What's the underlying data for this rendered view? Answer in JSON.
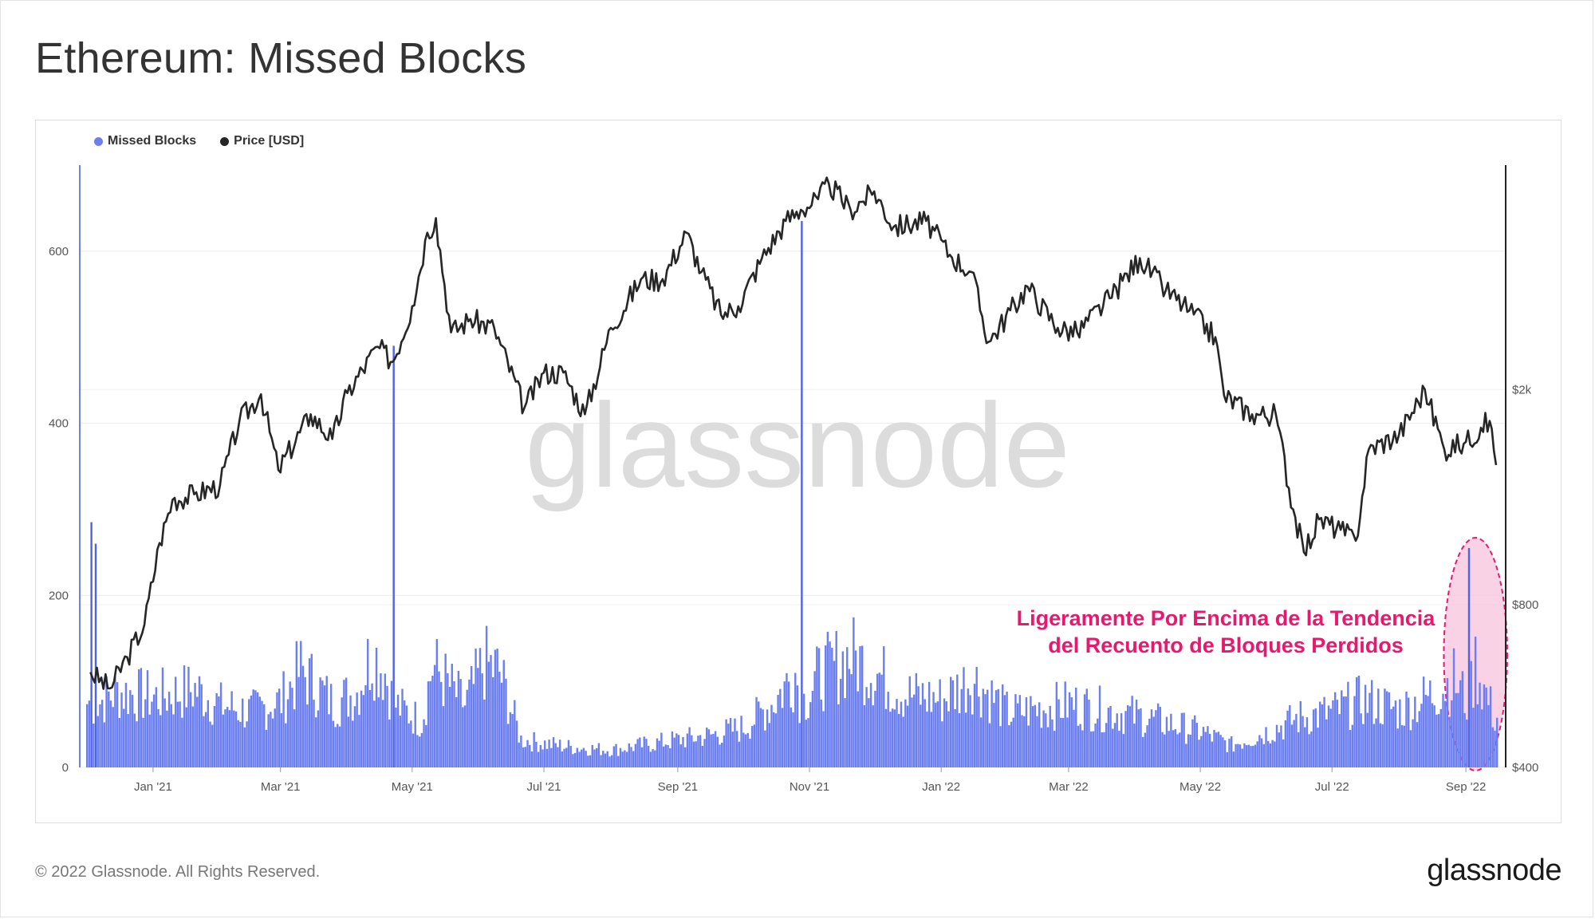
{
  "page": {
    "title": "Ethereum: Missed Blocks",
    "copyright": "© 2022 Glassnode. All Rights Reserved.",
    "brand_logo": "glassnode"
  },
  "colors": {
    "bars": "#6c7ff0",
    "bars_dark": "#4e63e6",
    "price_line": "#262626",
    "annotation": "#e8186f",
    "highlight_fill": "#f7c3dc",
    "watermark": "#dcdcdc",
    "grid": "#ececec"
  },
  "legend": [
    {
      "label": "Missed Blocks",
      "color": "#6c7ff0"
    },
    {
      "label": "Price [USD]",
      "color": "#262626"
    }
  ],
  "chart_data": {
    "type": "bar+line",
    "watermark": "glassnode",
    "x_range": [
      "2020-12-01",
      "2022-09-15"
    ],
    "x_ticks": [
      "Jan '21",
      "Mar '21",
      "May '21",
      "Jul '21",
      "Sep '21",
      "Nov '21",
      "Jan '22",
      "Mar '22",
      "May '22",
      "Jul '22",
      "Sep '22"
    ],
    "x_tick_dates": [
      "2021-01-01",
      "2021-03-01",
      "2021-05-01",
      "2021-07-01",
      "2021-09-01",
      "2021-11-01",
      "2022-01-01",
      "2022-03-01",
      "2022-05-01",
      "2022-07-01",
      "2022-09-01"
    ],
    "y_left": {
      "label": "Missed Blocks",
      "ticks": [
        "0",
        "200",
        "400",
        "600"
      ],
      "tick_values": [
        0,
        200,
        400,
        600
      ],
      "range": [
        0,
        700
      ]
    },
    "y_right": {
      "label": "Price [USD]",
      "scale": "log",
      "ticks": [
        "$400",
        "$800",
        "$2k"
      ],
      "tick_values": [
        400,
        800,
        2000
      ],
      "range": [
        400,
        5200
      ]
    },
    "series": [
      {
        "name": "Missed Blocks",
        "kind": "bar",
        "axis": "left",
        "points": [
          [
            "2020-12-03",
            285
          ],
          [
            "2020-12-05",
            260
          ],
          [
            "2020-12-15",
            95
          ],
          [
            "2021-01-01",
            88
          ],
          [
            "2021-01-20",
            98
          ],
          [
            "2021-02-01",
            78
          ],
          [
            "2021-02-15",
            70
          ],
          [
            "2021-03-01",
            84
          ],
          [
            "2021-03-10",
            122
          ],
          [
            "2021-03-25",
            80
          ],
          [
            "2021-04-05",
            95
          ],
          [
            "2021-04-12",
            145
          ],
          [
            "2021-04-18",
            120
          ],
          [
            "2021-04-22",
            490
          ],
          [
            "2021-05-05",
            58
          ],
          [
            "2021-05-10",
            128
          ],
          [
            "2021-05-25",
            78
          ],
          [
            "2021-06-03",
            130
          ],
          [
            "2021-06-10",
            120
          ],
          [
            "2021-06-20",
            35
          ],
          [
            "2021-07-01",
            30
          ],
          [
            "2021-07-15",
            25
          ],
          [
            "2021-08-01",
            22
          ],
          [
            "2021-08-15",
            28
          ],
          [
            "2021-09-01",
            35
          ],
          [
            "2021-09-15",
            40
          ],
          [
            "2021-10-01",
            50
          ],
          [
            "2021-10-15",
            82
          ],
          [
            "2021-10-25",
            120
          ],
          [
            "2021-10-28",
            635
          ],
          [
            "2021-11-05",
            115
          ],
          [
            "2021-11-20",
            140
          ],
          [
            "2021-12-01",
            120
          ],
          [
            "2021-12-15",
            92
          ],
          [
            "2022-01-01",
            85
          ],
          [
            "2022-01-15",
            112
          ],
          [
            "2022-02-01",
            68
          ],
          [
            "2022-03-01",
            80
          ],
          [
            "2022-04-01",
            65
          ],
          [
            "2022-05-01",
            45
          ],
          [
            "2022-05-15",
            28
          ],
          [
            "2022-06-01",
            45
          ],
          [
            "2022-06-15",
            62
          ],
          [
            "2022-07-01",
            70
          ],
          [
            "2022-07-15",
            85
          ],
          [
            "2022-08-01",
            72
          ],
          [
            "2022-08-15",
            90
          ],
          [
            "2022-08-26",
            110
          ],
          [
            "2022-09-02",
            255
          ],
          [
            "2022-09-05",
            130
          ],
          [
            "2022-09-10",
            90
          ],
          [
            "2022-09-14",
            62
          ]
        ]
      },
      {
        "name": "Price [USD]",
        "kind": "line",
        "axis": "right",
        "points": [
          [
            "2020-12-03",
            600
          ],
          [
            "2020-12-12",
            560
          ],
          [
            "2020-12-20",
            640
          ],
          [
            "2020-12-28",
            735
          ],
          [
            "2021-01-04",
            1040
          ],
          [
            "2021-01-10",
            1250
          ],
          [
            "2021-01-20",
            1280
          ],
          [
            "2021-02-01",
            1330
          ],
          [
            "2021-02-10",
            1750
          ],
          [
            "2021-02-20",
            1960
          ],
          [
            "2021-02-28",
            1420
          ],
          [
            "2021-03-15",
            1800
          ],
          [
            "2021-03-25",
            1620
          ],
          [
            "2021-04-01",
            1970
          ],
          [
            "2021-04-15",
            2400
          ],
          [
            "2021-04-22",
            2250
          ],
          [
            "2021-05-01",
            2850
          ],
          [
            "2021-05-08",
            3900
          ],
          [
            "2021-05-12",
            4150
          ],
          [
            "2021-05-19",
            2550
          ],
          [
            "2021-05-28",
            2700
          ],
          [
            "2021-06-08",
            2600
          ],
          [
            "2021-06-22",
            1850
          ],
          [
            "2021-07-01",
            2150
          ],
          [
            "2021-07-10",
            2150
          ],
          [
            "2021-07-20",
            1800
          ],
          [
            "2021-08-01",
            2600
          ],
          [
            "2021-08-15",
            3200
          ],
          [
            "2021-08-25",
            3200
          ],
          [
            "2021-09-05",
            3900
          ],
          [
            "2021-09-12",
            3300
          ],
          [
            "2021-09-21",
            2750
          ],
          [
            "2021-09-29",
            2850
          ],
          [
            "2021-10-10",
            3500
          ],
          [
            "2021-10-21",
            4100
          ],
          [
            "2021-10-28",
            4300
          ],
          [
            "2021-11-05",
            4500
          ],
          [
            "2021-11-10",
            4800
          ],
          [
            "2021-11-20",
            4300
          ],
          [
            "2021-12-01",
            4650
          ],
          [
            "2021-12-10",
            4000
          ],
          [
            "2021-12-25",
            4100
          ],
          [
            "2022-01-05",
            3550
          ],
          [
            "2022-01-15",
            3300
          ],
          [
            "2022-01-23",
            2450
          ],
          [
            "2022-02-10",
            3100
          ],
          [
            "2022-02-24",
            2600
          ],
          [
            "2022-03-05",
            2550
          ],
          [
            "2022-03-20",
            2950
          ],
          [
            "2022-04-03",
            3500
          ],
          [
            "2022-04-15",
            3050
          ],
          [
            "2022-04-26",
            2800
          ],
          [
            "2022-05-08",
            2500
          ],
          [
            "2022-05-12",
            1950
          ],
          [
            "2022-05-25",
            1800
          ],
          [
            "2022-06-05",
            1800
          ],
          [
            "2022-06-13",
            1200
          ],
          [
            "2022-06-18",
            1000
          ],
          [
            "2022-06-25",
            1150
          ],
          [
            "2022-07-05",
            1100
          ],
          [
            "2022-07-12",
            1050
          ],
          [
            "2022-07-18",
            1550
          ],
          [
            "2022-08-01",
            1650
          ],
          [
            "2022-08-13",
            2000
          ],
          [
            "2022-08-22",
            1550
          ],
          [
            "2022-09-01",
            1600
          ],
          [
            "2022-09-08",
            1700
          ],
          [
            "2022-09-12",
            1750
          ],
          [
            "2022-09-15",
            1450
          ]
        ]
      }
    ],
    "annotation": {
      "lines": [
        "Ligeramente Por Encima de la Tendencia",
        "del Recuento de Bloques Perdidos"
      ],
      "highlight_period": [
        "2022-08-24",
        "2022-09-15"
      ]
    }
  }
}
